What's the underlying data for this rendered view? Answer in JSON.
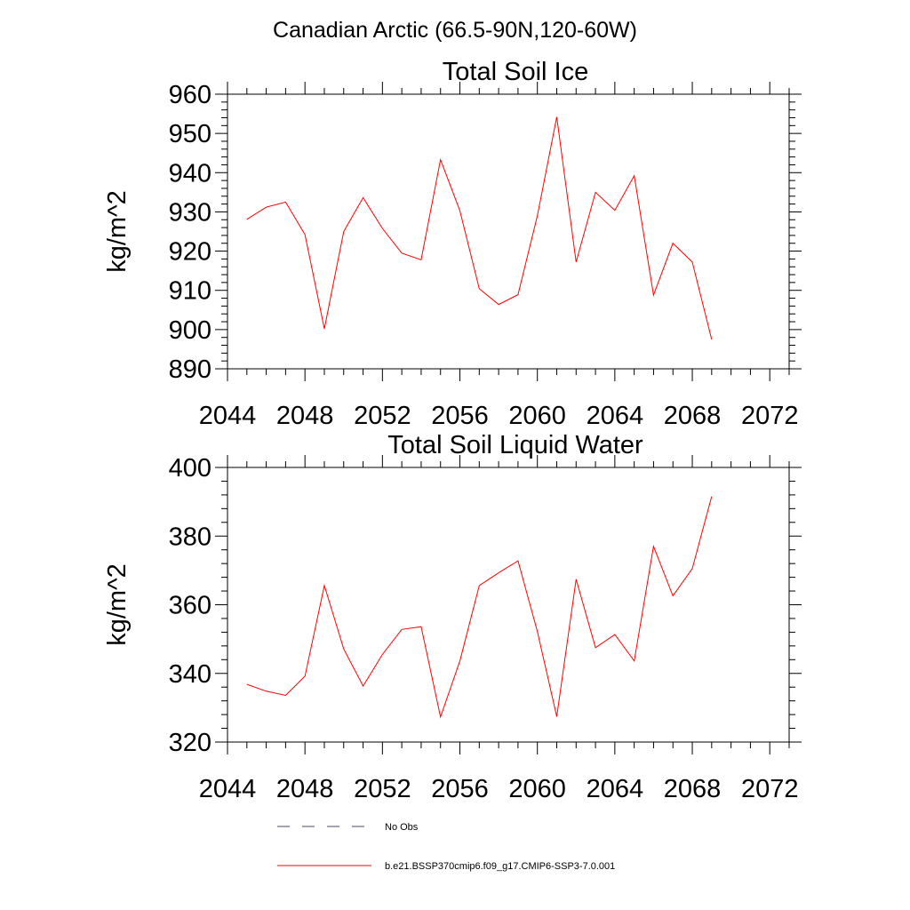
{
  "title": "Canadian Arctic (66.5-90N,120-60W)",
  "chart_data": [
    {
      "type": "line",
      "title": "Total Soil Ice",
      "ylabel": "kg/m^2",
      "xlabel": "",
      "xlim": [
        2044,
        2073
      ],
      "ylim": [
        890,
        960
      ],
      "xticks": [
        2044,
        2048,
        2052,
        2056,
        2060,
        2064,
        2068,
        2072
      ],
      "yticks": [
        890,
        900,
        910,
        920,
        930,
        940,
        950,
        960
      ],
      "x": [
        2045,
        2046,
        2047,
        2048,
        2049,
        2050,
        2051,
        2052,
        2053,
        2054,
        2055,
        2056,
        2057,
        2058,
        2059,
        2060,
        2061,
        2062,
        2063,
        2064,
        2065,
        2066,
        2067,
        2068,
        2069
      ],
      "series": [
        {
          "name": "b.e21.BSSP370cmip6.f09_g17.CMIP6-SSP3-7.0.001",
          "color": "#ff0000",
          "values": [
            928.1,
            931.2,
            932.5,
            924.2,
            900.2,
            925.0,
            933.6,
            925.8,
            919.5,
            917.8,
            943.3,
            930.3,
            910.4,
            906.4,
            908.9,
            929.0,
            954.2,
            917.2,
            935.0,
            930.4,
            939.2,
            908.8,
            922.0,
            917.2,
            897.5
          ]
        }
      ]
    },
    {
      "type": "line",
      "title": "Total Soil Liquid Water",
      "ylabel": "kg/m^2",
      "xlabel": "",
      "xlim": [
        2044,
        2073
      ],
      "ylim": [
        320,
        400
      ],
      "xticks": [
        2044,
        2048,
        2052,
        2056,
        2060,
        2064,
        2068,
        2072
      ],
      "yticks": [
        320,
        340,
        360,
        380,
        400
      ],
      "x": [
        2045,
        2046,
        2047,
        2048,
        2049,
        2050,
        2051,
        2052,
        2053,
        2054,
        2055,
        2056,
        2057,
        2058,
        2059,
        2060,
        2061,
        2062,
        2063,
        2064,
        2065,
        2066,
        2067,
        2068,
        2069
      ],
      "series": [
        {
          "name": "b.e21.BSSP370cmip6.f09_g17.CMIP6-SSP3-7.0.001",
          "color": "#ff0000",
          "values": [
            336.8,
            334.8,
            333.6,
            339.2,
            365.6,
            347.1,
            336.3,
            345.5,
            352.8,
            353.6,
            327.3,
            343.6,
            365.6,
            369.3,
            372.8,
            352.2,
            327.4,
            367.4,
            347.5,
            351.3,
            343.6,
            377.0,
            362.6,
            370.5,
            391.5
          ]
        }
      ]
    }
  ],
  "legend": {
    "placement": "bottom",
    "items": [
      {
        "label": "No Obs",
        "style": "dashed",
        "color": "#000000"
      },
      {
        "label": "b.e21.BSSP370cmip6.f09_g17.CMIP6-SSP3-7.0.001",
        "style": "solid",
        "color": "#ff0000"
      }
    ]
  }
}
